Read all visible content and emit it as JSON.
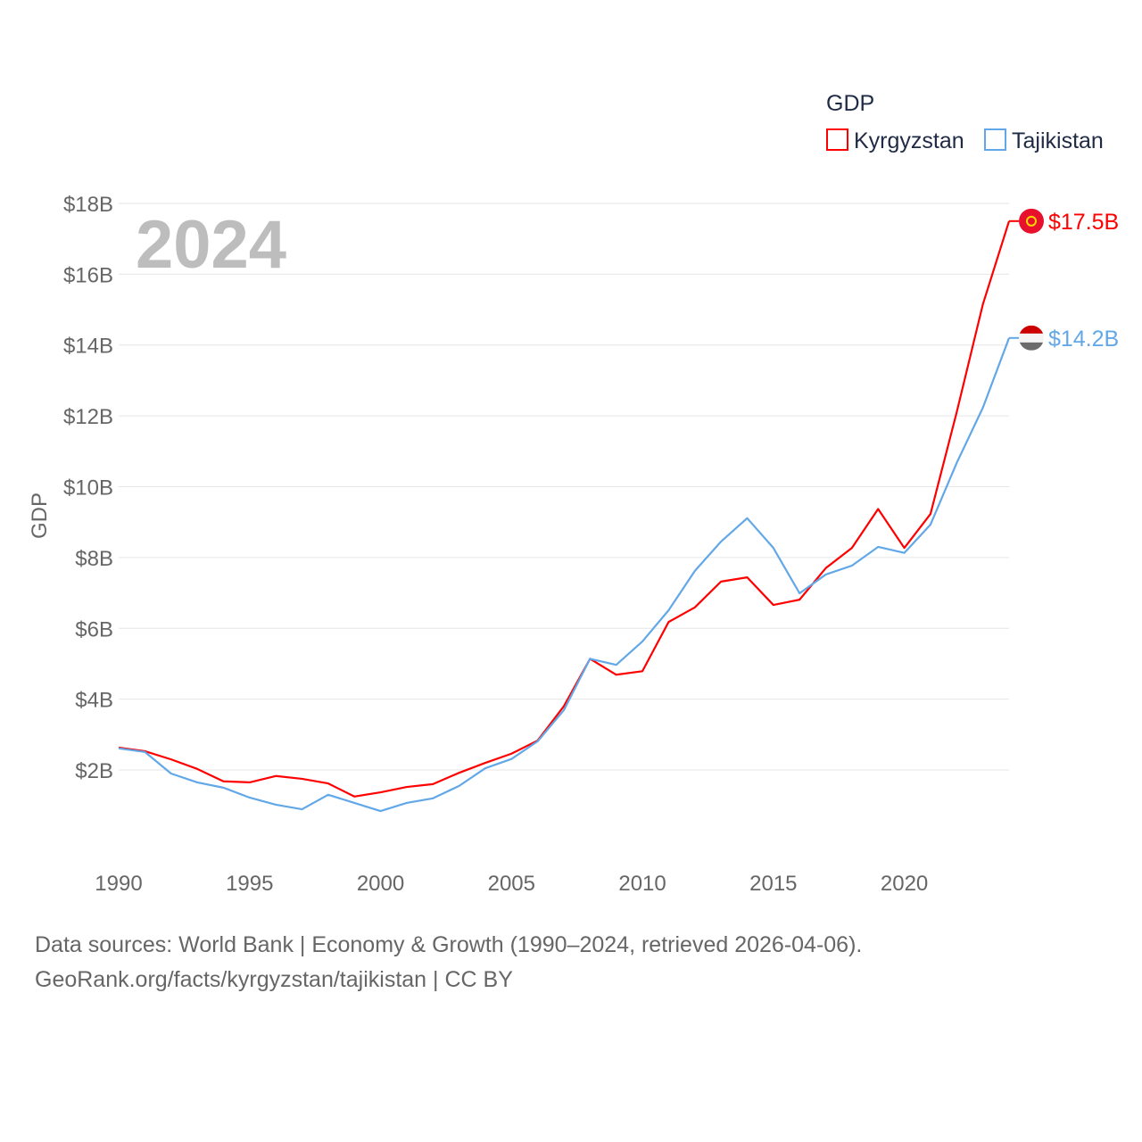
{
  "chart_data": {
    "type": "line",
    "watermark_year": "2024",
    "ylabel": "GDP",
    "legend_title": "GDP",
    "legend_placement": "top-right",
    "x": [
      1990,
      1991,
      1992,
      1993,
      1994,
      1995,
      1996,
      1997,
      1998,
      1999,
      2000,
      2001,
      2002,
      2003,
      2004,
      2005,
      2006,
      2007,
      2008,
      2009,
      2010,
      2011,
      2012,
      2013,
      2014,
      2015,
      2016,
      2017,
      2018,
      2019,
      2020,
      2021,
      2022,
      2023,
      2024
    ],
    "xlim": [
      1990,
      2024
    ],
    "ylim": [
      0,
      18
    ],
    "x_ticks": [
      1990,
      1995,
      2000,
      2005,
      2010,
      2015,
      2020
    ],
    "y_ticks": [
      2,
      4,
      6,
      8,
      10,
      12,
      14,
      16,
      18
    ],
    "y_tick_labels": [
      "$2B",
      "$4B",
      "$6B",
      "$8B",
      "$10B",
      "$12B",
      "$14B",
      "$16B",
      "$18B"
    ],
    "grid": true,
    "series": [
      {
        "name": "Kyrgyzstan",
        "color": "#ff0000",
        "end_label": "$17.5B",
        "values": [
          2.63,
          2.53,
          2.3,
          2.03,
          1.68,
          1.65,
          1.83,
          1.75,
          1.62,
          1.25,
          1.37,
          1.52,
          1.6,
          1.92,
          2.2,
          2.46,
          2.83,
          3.8,
          5.14,
          4.69,
          4.79,
          6.18,
          6.59,
          7.32,
          7.44,
          6.66,
          6.81,
          7.7,
          8.27,
          9.37,
          8.27,
          9.23,
          12.1,
          15.15,
          17.5
        ]
      },
      {
        "name": "Tajikistan",
        "color": "#62a8e8",
        "end_label": "$14.2B",
        "values": [
          2.61,
          2.51,
          1.9,
          1.65,
          1.5,
          1.22,
          1.02,
          0.89,
          1.3,
          1.07,
          0.84,
          1.07,
          1.2,
          1.55,
          2.05,
          2.31,
          2.81,
          3.69,
          5.14,
          4.97,
          5.63,
          6.51,
          7.62,
          8.45,
          9.11,
          8.27,
          6.99,
          7.52,
          7.77,
          8.3,
          8.13,
          8.93,
          10.67,
          12.23,
          14.2
        ]
      }
    ]
  },
  "footer": {
    "line1": "Data sources: World Bank | Economy & Growth (1990–2024, retrieved 2026-04-06).",
    "line2": "GeoRank.org/facts/kyrgyzstan/tajikistan | CC BY"
  }
}
